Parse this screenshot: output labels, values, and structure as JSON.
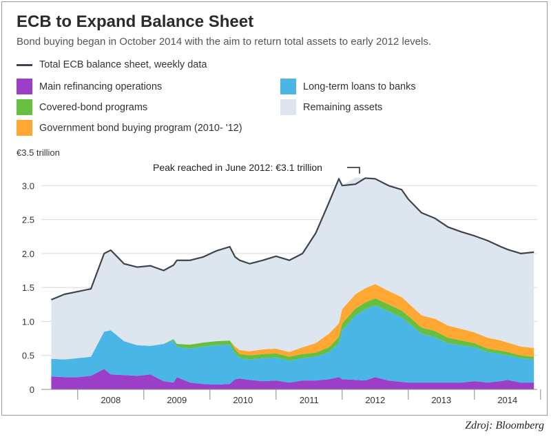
{
  "chart_data": {
    "type": "area",
    "title": "ECB to Expand Balance Sheet",
    "subtitle": "Bond buying began in October 2014 with the aim to return total assets to early 2012 levels.",
    "unit_label": "€3.5 trillion",
    "annotation": "Peak reached in June 2012: €3.1 trillion",
    "ylim": [
      0,
      3.5
    ],
    "yticks": [
      0,
      0.5,
      1.0,
      1.5,
      2.0,
      2.5,
      3.0
    ],
    "ytick_labels": [
      "0",
      "0.5",
      "1.0",
      "1.5",
      "2.0",
      "2.5",
      "3.0"
    ],
    "xlim": [
      2007.45,
      2014.95
    ],
    "x_categories": [
      "2008",
      "2009",
      "2010",
      "2011",
      "2012",
      "2013",
      "2014"
    ],
    "grid": true,
    "legend_position": "top",
    "legend": [
      {
        "name": "Total ECB balance sheet, weekly data",
        "kind": "line",
        "color": "#3d434d"
      },
      {
        "name": "Main refinancing operations",
        "kind": "area",
        "color": "#9b3fc9"
      },
      {
        "name": "Long-term loans to banks",
        "kind": "area",
        "color": "#49b6e6"
      },
      {
        "name": "Covered-bond programs",
        "kind": "area",
        "color": "#66c040"
      },
      {
        "name": "Government bond buying program (2010- '12)",
        "kind": "area",
        "color": "#ffa733"
      },
      {
        "name": "Remaining assets",
        "kind": "area",
        "color": "#dde6ef"
      }
    ],
    "x": [
      2007.6,
      2007.8,
      2008.0,
      2008.2,
      2008.4,
      2008.5,
      2008.7,
      2008.9,
      2009.1,
      2009.3,
      2009.45,
      2009.5,
      2009.7,
      2009.9,
      2010.1,
      2010.3,
      2010.38,
      2010.45,
      2010.6,
      2010.8,
      2011.0,
      2011.2,
      2011.4,
      2011.6,
      2011.8,
      2011.95,
      2012.0,
      2012.2,
      2012.35,
      2012.5,
      2012.7,
      2012.9,
      2013.0,
      2013.2,
      2013.4,
      2013.6,
      2013.8,
      2014.0,
      2014.2,
      2014.4,
      2014.5,
      2014.7,
      2014.9
    ],
    "series": [
      {
        "name": "Main refinancing operations",
        "values": [
          0.19,
          0.18,
          0.18,
          0.2,
          0.3,
          0.22,
          0.21,
          0.2,
          0.22,
          0.12,
          0.1,
          0.18,
          0.1,
          0.08,
          0.07,
          0.08,
          0.15,
          0.16,
          0.14,
          0.12,
          0.13,
          0.1,
          0.13,
          0.13,
          0.15,
          0.18,
          0.15,
          0.14,
          0.13,
          0.18,
          0.13,
          0.11,
          0.1,
          0.1,
          0.1,
          0.1,
          0.1,
          0.12,
          0.1,
          0.12,
          0.14,
          0.1,
          0.1
        ]
      },
      {
        "name": "Long-term loans to banks",
        "values": [
          0.26,
          0.26,
          0.28,
          0.28,
          0.55,
          0.65,
          0.5,
          0.45,
          0.42,
          0.55,
          0.62,
          0.45,
          0.5,
          0.55,
          0.58,
          0.58,
          0.38,
          0.3,
          0.3,
          0.34,
          0.34,
          0.32,
          0.33,
          0.35,
          0.4,
          0.5,
          0.72,
          0.95,
          1.05,
          1.06,
          1.02,
          0.95,
          0.88,
          0.72,
          0.67,
          0.58,
          0.55,
          0.5,
          0.45,
          0.4,
          0.36,
          0.36,
          0.34
        ]
      },
      {
        "name": "Covered-bond programs",
        "values": [
          0,
          0,
          0,
          0,
          0,
          0,
          0,
          0,
          0,
          0,
          0.02,
          0.04,
          0.06,
          0.06,
          0.06,
          0.06,
          0.06,
          0.06,
          0.06,
          0.06,
          0.06,
          0.06,
          0.06,
          0.06,
          0.07,
          0.09,
          0.1,
          0.1,
          0.1,
          0.1,
          0.1,
          0.1,
          0.1,
          0.09,
          0.09,
          0.08,
          0.07,
          0.06,
          0.05,
          0.05,
          0.05,
          0.04,
          0.04
        ]
      },
      {
        "name": "Government bond buying program (2010- '12)",
        "values": [
          0,
          0,
          0,
          0,
          0,
          0,
          0,
          0,
          0,
          0,
          0,
          0,
          0,
          0,
          0,
          0,
          0.04,
          0.06,
          0.06,
          0.07,
          0.07,
          0.07,
          0.1,
          0.14,
          0.2,
          0.2,
          0.21,
          0.21,
          0.21,
          0.21,
          0.2,
          0.2,
          0.19,
          0.18,
          0.18,
          0.18,
          0.17,
          0.16,
          0.16,
          0.15,
          0.14,
          0.13,
          0.13
        ]
      },
      {
        "name": "Remaining assets",
        "values": [
          0.87,
          0.96,
          0.98,
          1.0,
          1.15,
          1.18,
          1.14,
          1.15,
          1.18,
          1.08,
          1.09,
          1.23,
          1.24,
          1.26,
          1.33,
          1.38,
          1.32,
          1.32,
          1.29,
          1.31,
          1.36,
          1.35,
          1.38,
          1.62,
          1.93,
          2.13,
          1.82,
          1.72,
          1.62,
          1.55,
          1.55,
          1.58,
          1.53,
          1.51,
          1.48,
          1.45,
          1.43,
          1.42,
          1.43,
          1.38,
          1.37,
          1.37,
          1.41
        ]
      }
    ],
    "total": [
      1.32,
      1.4,
      1.44,
      1.48,
      2.0,
      2.05,
      1.85,
      1.8,
      1.82,
      1.75,
      1.83,
      1.9,
      1.9,
      1.95,
      2.04,
      2.1,
      1.95,
      1.9,
      1.85,
      1.9,
      1.96,
      1.9,
      2.0,
      2.3,
      2.75,
      3.1,
      3.0,
      3.02,
      3.11,
      3.1,
      3.0,
      2.94,
      2.8,
      2.6,
      2.52,
      2.39,
      2.32,
      2.26,
      2.19,
      2.1,
      2.06,
      2.0,
      2.02
    ]
  },
  "source": "Zdroj: Bloomberg"
}
